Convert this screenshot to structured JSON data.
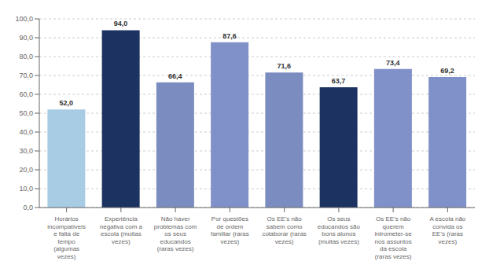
{
  "chart_data": {
    "type": "bar",
    "categories": [
      "Horários\nincompatíveis\ne falta de\ntempo\n(algumas\nvezes)",
      "Experiência\nnegativa com a\nescola (muitas\nvezes)",
      "Não haver\nproblemas com\nos seus\neducandos\n(raras vezes)",
      "Por questões\nde ordem\nfamiliar (raras\nvezes)",
      "Os EE's não\nsabem como\ncolaborar (raras\nvezes)",
      "Os seus\neducandos são\nbons alunos\n(muitas vezes)",
      "Os EE's não\nquerem\nintrometer-se\nnos assuntos\nda escola\n(raras vezes)",
      "A escola não\nconvida os\nEE's (raras\nvezes)"
    ],
    "values": [
      52.0,
      94.0,
      66.4,
      87.6,
      71.6,
      63.7,
      73.4,
      69.2
    ],
    "value_labels": [
      "52,0",
      "94,0",
      "66,4",
      "87,6",
      "71,6",
      "63,7",
      "73,4",
      "69,2"
    ],
    "colors": [
      "#a8cce4",
      "#1c3361",
      "#7b8dc0",
      "#8090c8",
      "#7b8dc0",
      "#1c3361",
      "#8090c8",
      "#8090c8"
    ],
    "ylim": [
      0,
      100
    ],
    "yticks": [
      {
        "value": 0,
        "label": "0,0"
      },
      {
        "value": 10,
        "label": "10,0"
      },
      {
        "value": 20,
        "label": "20,0"
      },
      {
        "value": 30,
        "label": "30,0"
      },
      {
        "value": 40,
        "label": "40,0"
      },
      {
        "value": 50,
        "label": "50,0"
      },
      {
        "value": 60,
        "label": "60,0"
      },
      {
        "value": 70,
        "label": "70,0"
      },
      {
        "value": 80,
        "label": "80,0"
      },
      {
        "value": 90,
        "label": "90,0"
      },
      {
        "value": 100,
        "label": "100,0"
      }
    ],
    "grid": true,
    "data_labels": true
  }
}
